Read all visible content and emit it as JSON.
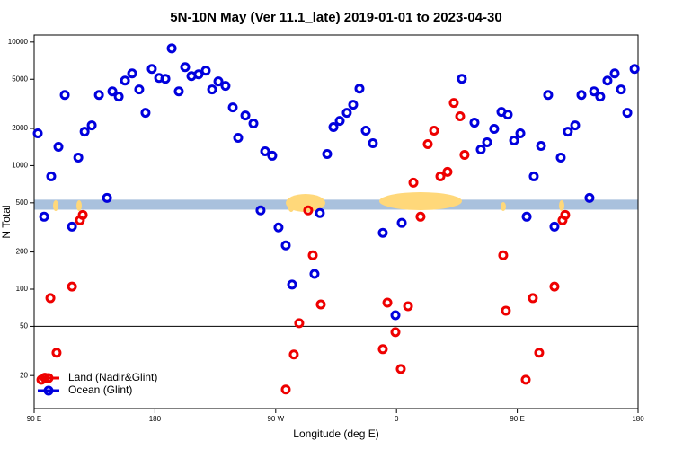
{
  "chart_data": {
    "type": "scatter",
    "title": "5N-10N May (Ver 11.1_late)   2019-01-01 to 2023-04-30",
    "x_label": "Longitude (deg E)",
    "y_label": "N Total",
    "xlim": [
      90,
      540
    ],
    "xticks": [
      {
        "value": 90,
        "label": "90 E"
      },
      180,
      {
        "value": 270,
        "label": "90 W"
      },
      {
        "value": 360,
        "label": "0"
      },
      {
        "value": 450,
        "label": "90 E"
      },
      {
        "value": 540,
        "label": "180"
      }
    ],
    "ylim": [
      10.8,
      11400
    ],
    "log_y": true,
    "yticks": [
      20,
      50,
      100,
      200,
      500,
      1000,
      2000,
      5000,
      10000
    ],
    "hline": 50,
    "band": [
      440,
      530
    ],
    "band_color": "#a9c1dd",
    "legend": "bottom-left",
    "series": [
      {
        "name": "Land (Nadir&Glint)",
        "color": "#ee0000",
        "x": [
          95.4,
          98,
          102.1,
          106.7,
          118.2,
          124.1,
          126.2,
          277.5,
          283.5,
          287.5,
          294.2,
          297.6,
          303.6,
          349.8,
          353.2,
          359.2,
          363.2,
          368.6,
          372.6,
          377.9,
          383.3,
          388,
          392.7,
          398,
          402.7,
          407.4,
          410.7,
          439.5,
          441.5,
          456.3,
          461.6,
          466.3,
          477.7,
          483.7,
          485.7
        ],
        "values": [
          18.5,
          19.2,
          84.7,
          30.6,
          105,
          361,
          399,
          15.4,
          29.6,
          53.1,
          434,
          188,
          75.3,
          32.7,
          77.8,
          44.9,
          22.6,
          72.8,
          728,
          386,
          1493,
          1918,
          818,
          890,
          3214,
          2506,
          1222,
          188,
          67,
          18.5,
          84.7,
          30.6,
          105,
          361,
          399
        ]
      },
      {
        "name": "Ocean (Glint)",
        "color": "#0000dd",
        "x": [
          92.7,
          97.4,
          102.7,
          108.1,
          112.8,
          118.2,
          122.9,
          127.6,
          132.9,
          138.3,
          144.3,
          148.3,
          153,
          157.7,
          163,
          168.3,
          173,
          177.7,
          183.1,
          187.8,
          192.5,
          197.8,
          202.5,
          207.2,
          212.5,
          217.9,
          222.6,
          227.3,
          232.6,
          238,
          242,
          247.4,
          253.4,
          258.7,
          262.1,
          267.4,
          272.1,
          277.5,
          282.2,
          298.9,
          302.9,
          308.3,
          313,
          317.7,
          323,
          327.7,
          332.4,
          337.1,
          342.4,
          349.8,
          359.2,
          363.9,
          408.7,
          418.1,
          422.8,
          427.5,
          432.8,
          438.2,
          442.9,
          447.6,
          452.3,
          457,
          462.3,
          467.7,
          473,
          477.7,
          482.4,
          487.7,
          493.1,
          497.8,
          503.8,
          507.2,
          511.8,
          517.2,
          522.6,
          527.3,
          532,
          537.4
        ],
        "values": [
          1824,
          386,
          818,
          1419,
          3733,
          321,
          1161,
          1884,
          2118,
          3733,
          548,
          3992,
          3614,
          4877,
          5572,
          4130,
          2677,
          6067,
          5128,
          5047,
          8895,
          3992,
          6270,
          5305,
          5480,
          5868,
          4130,
          4800,
          4416,
          2958,
          1678,
          2545,
          2191,
          434,
          1306,
          1202,
          316,
          226,
          109,
          133,
          413,
          1242,
          2051,
          2302,
          2677,
          3112,
          4198,
          1918,
          1518,
          286,
          61.6,
          344,
          5047,
          2228,
          1350,
          1543,
          1982,
          2722,
          2588,
          1596,
          1824,
          386,
          818,
          1443,
          3733,
          321,
          1161,
          1884,
          2118,
          3733,
          548,
          3992,
          3614,
          4877,
          5572,
          4130,
          2677,
          6067
        ]
      }
    ]
  }
}
